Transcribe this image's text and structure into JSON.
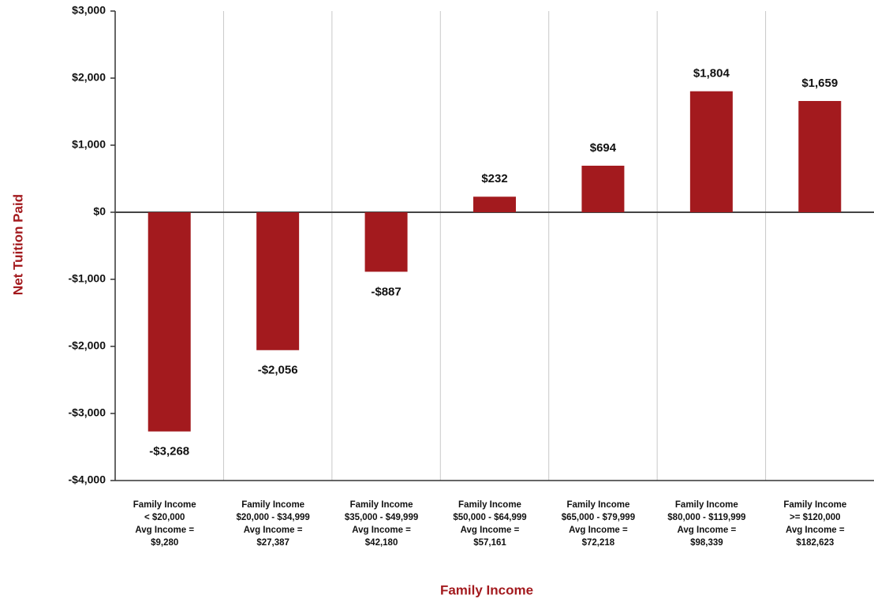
{
  "chart_data": {
    "type": "bar",
    "y_axis_label": "Net Tuition Paid",
    "x_axis_label": "Family Income",
    "categories": [
      [
        "Family Income",
        "< $20,000",
        "Avg Income =",
        "$9,280"
      ],
      [
        "Family Income",
        "$20,000 - $34,999",
        "Avg Income =",
        "$27,387"
      ],
      [
        "Family Income",
        "$35,000 - $49,999",
        "Avg Income =",
        "$42,180"
      ],
      [
        "Family Income",
        "$50,000 - $64,999",
        "Avg Income =",
        "$57,161"
      ],
      [
        "Family Income",
        "$65,000 - $79,999",
        "Avg Income =",
        "$72,218"
      ],
      [
        "Family Income",
        "$80,000 - $119,999",
        "Avg Income =",
        "$98,339"
      ],
      [
        "Family Income",
        ">= $120,000",
        "Avg Income =",
        "$182,623"
      ]
    ],
    "values": [
      -3268,
      -2056,
      -887,
      232,
      694,
      1804,
      1659
    ],
    "value_labels": [
      "-$3,268",
      "-$2,056",
      "-$887",
      "$232",
      "$694",
      "$1,804",
      "$1,659"
    ],
    "color": "#a31a1e",
    "ylim": [
      -4000,
      3000
    ],
    "yticks": [
      {
        "value": -4000,
        "label": "-$4,000"
      },
      {
        "value": -3000,
        "label": "-$3,000"
      },
      {
        "value": -2000,
        "label": "-$2,000"
      },
      {
        "value": -1000,
        "label": "-$1,000"
      },
      {
        "value": 0,
        "label": "$0"
      },
      {
        "value": 1000,
        "label": "$1,000"
      },
      {
        "value": 2000,
        "label": "$2,000"
      },
      {
        "value": 3000,
        "label": "$3,000"
      }
    ]
  }
}
